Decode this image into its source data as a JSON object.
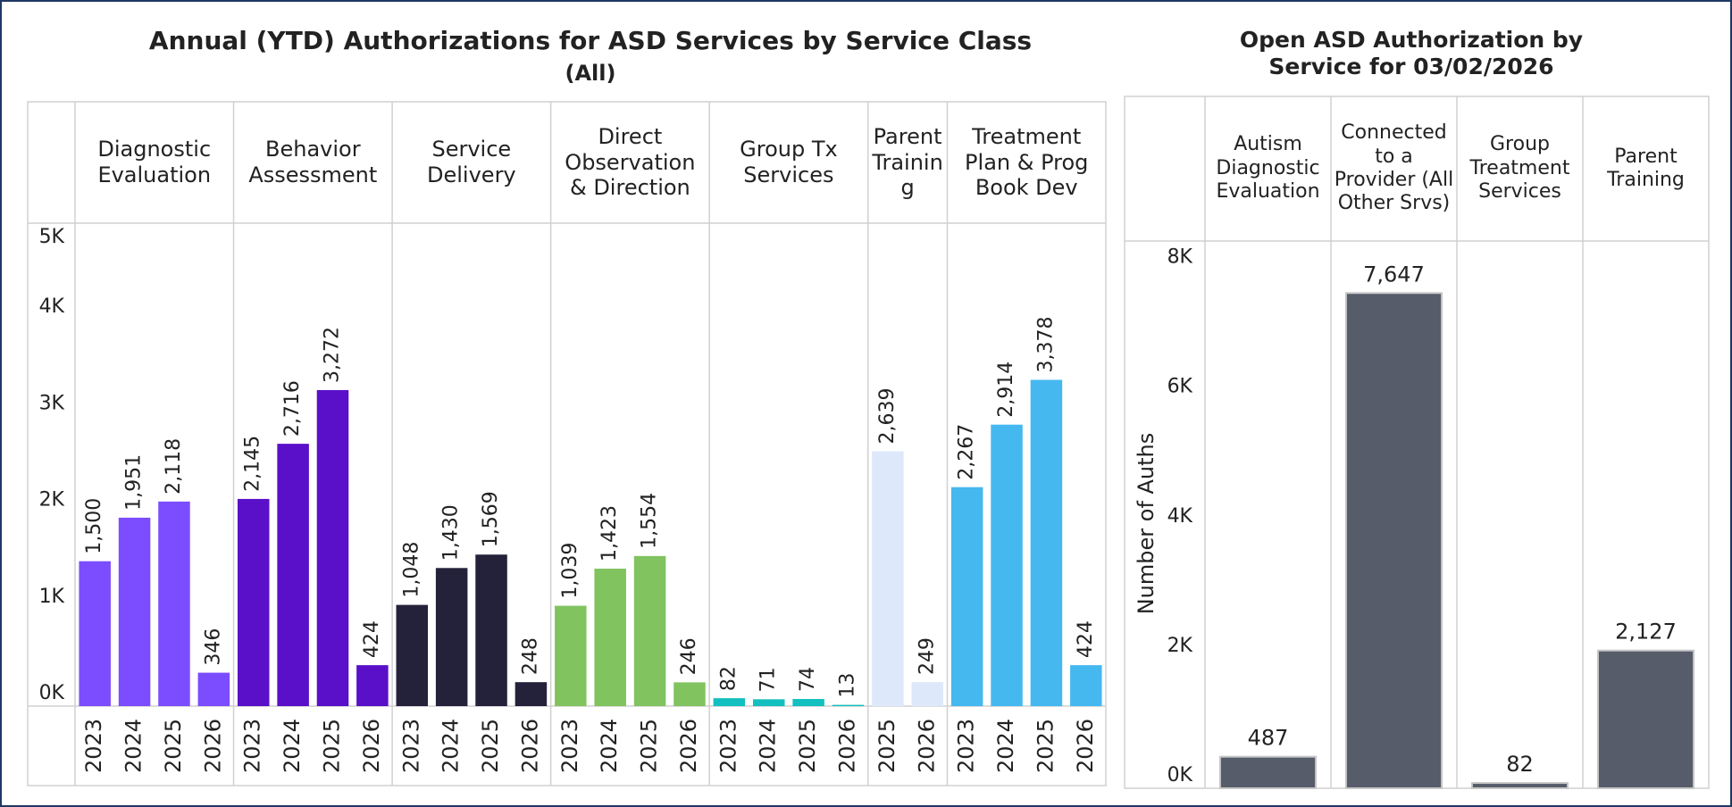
{
  "chart_data": [
    {
      "type": "bar",
      "title": "Annual (YTD) Authorizations for ASD Services by Service Class",
      "subtitle": "(All)",
      "groups": [
        {
          "name": "Diagnostic Evaluation",
          "color": "#7b4dff",
          "categories": [
            "2023",
            "2024",
            "2025",
            "2026"
          ],
          "values": [
            1500,
            1951,
            2118,
            346
          ],
          "value_labels": [
            "1,500",
            "1,951",
            "2,118",
            "346"
          ]
        },
        {
          "name": "Behavior Assessment",
          "color": "#5a0fc8",
          "categories": [
            "2023",
            "2024",
            "2025",
            "2026"
          ],
          "values": [
            2145,
            2716,
            3272,
            424
          ],
          "value_labels": [
            "2,145",
            "2,716",
            "3,272",
            "424"
          ]
        },
        {
          "name": "Service Delivery",
          "color": "#24223a",
          "categories": [
            "2023",
            "2024",
            "2025",
            "2026"
          ],
          "values": [
            1048,
            1430,
            1569,
            248
          ],
          "value_labels": [
            "1,048",
            "1,430",
            "1,569",
            "248"
          ]
        },
        {
          "name": "Direct Observation & Direction",
          "color": "#80c35f",
          "categories": [
            "2023",
            "2024",
            "2025",
            "2026"
          ],
          "values": [
            1039,
            1423,
            1554,
            246
          ],
          "value_labels": [
            "1,039",
            "1,423",
            "1,554",
            "246"
          ]
        },
        {
          "name": "Group Tx Services",
          "color": "#13bfbf",
          "categories": [
            "2023",
            "2024",
            "2025",
            "2026"
          ],
          "values": [
            82,
            71,
            74,
            13
          ],
          "value_labels": [
            "82",
            "71",
            "74",
            "13"
          ]
        },
        {
          "name": "Parent Training",
          "color": "#dde9fb",
          "categories": [
            "2025",
            "2026"
          ],
          "values": [
            2639,
            249
          ],
          "value_labels": [
            "2,639",
            "249"
          ]
        },
        {
          "name": "Treatment Plan & Prog Book Dev",
          "color": "#45b8f0",
          "categories": [
            "2023",
            "2024",
            "2025",
            "2026"
          ],
          "values": [
            2267,
            2914,
            3378,
            424
          ],
          "value_labels": [
            "2,267",
            "2,914",
            "3,378",
            "424"
          ]
        }
      ],
      "ylim": [
        0,
        5000
      ],
      "yticks": [
        {
          "value": 0,
          "label": "0K"
        },
        {
          "value": 1000,
          "label": "1K"
        },
        {
          "value": 2000,
          "label": "2K"
        },
        {
          "value": 3000,
          "label": "3K"
        },
        {
          "value": 4000,
          "label": "4K"
        },
        {
          "value": 5000,
          "label": "5K"
        }
      ],
      "grid": false
    },
    {
      "type": "bar",
      "title": "Open ASD Authorization by Service for 03/02/2026",
      "y_label": "Number of Auths",
      "categories": [
        "Autism Diagnostic Evaluation",
        "Connected to a Provider (All Other Srvs)",
        "Group Treatment Services",
        "Parent Training"
      ],
      "values": [
        487,
        7647,
        82,
        2127
      ],
      "value_labels": [
        "487",
        "7,647",
        "82",
        "2,127"
      ],
      "color": "#565c6a",
      "ylim": [
        0,
        8450
      ],
      "yticks": [
        {
          "value": 0,
          "label": "0K"
        },
        {
          "value": 2000,
          "label": "2K"
        },
        {
          "value": 4000,
          "label": "4K"
        },
        {
          "value": 6000,
          "label": "6K"
        },
        {
          "value": 8000,
          "label": "8K"
        }
      ],
      "grid": false
    }
  ]
}
